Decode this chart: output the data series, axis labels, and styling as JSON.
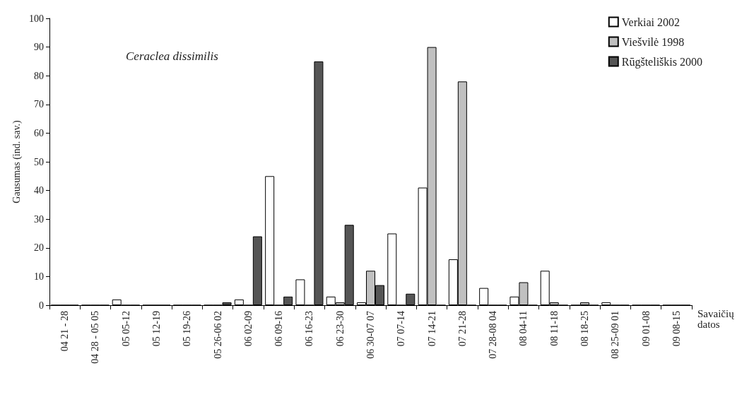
{
  "chart_data": {
    "type": "bar",
    "ylabel": "Gausumas (ind. sav.)",
    "xlabel": "Savaičių\ndatos",
    "annotations": [
      "Ceraclea dissimilis"
    ],
    "categories": [
      "04 21 - 28",
      "04 28 - 05 05",
      "05 05-12",
      "05 12-19",
      "05 19-26",
      "05 26-06 02",
      "06 02-09",
      "06 09-16",
      "06 16-23",
      "06 23-30",
      "06 30-07 07",
      "07 07-14",
      "07 14-21",
      "07 21-28",
      "07 28-08 04",
      "08 04-11",
      "08 11-18",
      "08 18-25",
      "08 25-09 01",
      "09 01-08",
      "09 08-15"
    ],
    "series": [
      {
        "name": "Verkiai 2002",
        "color": "#ffffff",
        "values": [
          0,
          0,
          2,
          0,
          0,
          0,
          2,
          45,
          9,
          3,
          1,
          25,
          41,
          16,
          6,
          3,
          12,
          0,
          1,
          0,
          0
        ]
      },
      {
        "name": "Viešvilė 1998",
        "color": "#c0c0c0",
        "values": [
          0,
          0,
          0,
          0,
          0,
          0,
          0,
          0,
          0,
          1,
          12,
          0,
          90,
          78,
          0,
          8,
          1,
          1,
          0,
          0,
          0
        ]
      },
      {
        "name": "Rūgšteliškis 2000",
        "color": "#555555",
        "values": [
          0,
          0,
          0,
          0,
          0,
          1,
          24,
          3,
          85,
          28,
          7,
          4,
          0,
          0,
          0,
          0,
          0,
          0,
          0,
          0,
          0
        ]
      }
    ],
    "ylim": [
      0,
      100
    ],
    "yticks": [
      0,
      10,
      20,
      30,
      40,
      50,
      60,
      70,
      80,
      90,
      100
    ],
    "grid": false,
    "legend": "top right"
  }
}
